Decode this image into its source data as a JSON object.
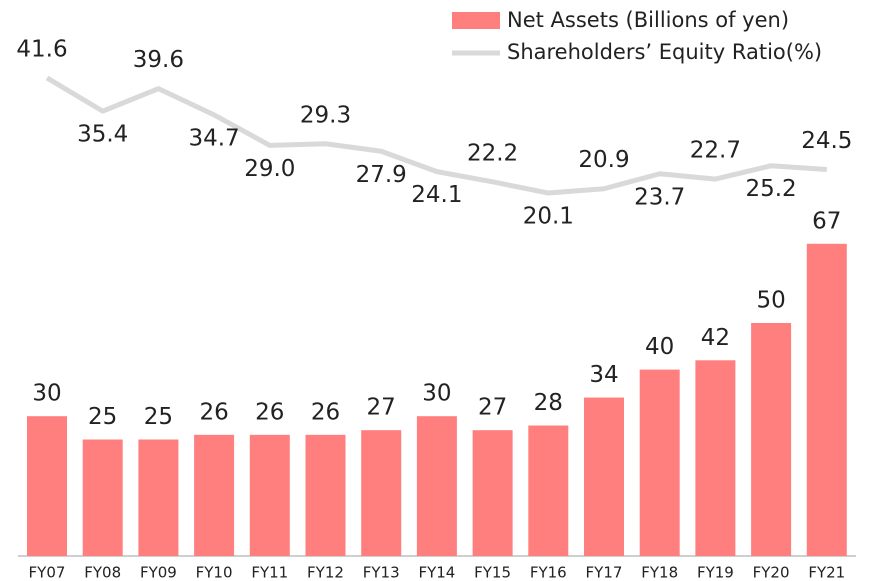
{
  "chart_data": {
    "type": "bar_line",
    "categories": [
      "FY07",
      "FY08",
      "FY09",
      "FY10",
      "FY11",
      "FY12",
      "FY13",
      "FY14",
      "FY15",
      "FY16",
      "FY17",
      "FY18",
      "FY19",
      "FY20",
      "FY21"
    ],
    "series": [
      {
        "name": "Net Assets (Billions of yen)",
        "color": "#ff7f7f",
        "type": "bar",
        "values": [
          30,
          25,
          25,
          26,
          26,
          26,
          27,
          30,
          27,
          28,
          34,
          40,
          42,
          50,
          67
        ]
      },
      {
        "name": "Shareholders’ Equity Ratio(%)",
        "color": "#d9d9d9",
        "type": "line",
        "axis": "y2",
        "values": [
          41.6,
          35.4,
          39.6,
          34.7,
          29.0,
          29.3,
          27.9,
          24.1,
          22.2,
          20.1,
          20.9,
          23.7,
          22.7,
          25.2,
          24.5
        ],
        "value_labels": [
          "41.6",
          "35.4",
          "39.6",
          "34.7",
          "29.0",
          "29.3",
          "27.9",
          "24.1",
          "22.2",
          "20.1",
          "20.9",
          "23.7",
          "22.7",
          "25.2",
          "24.5"
        ]
      }
    ],
    "ylim": [
      0,
      100
    ],
    "y2lim": [
      0,
      50
    ],
    "legend": "top-right"
  }
}
